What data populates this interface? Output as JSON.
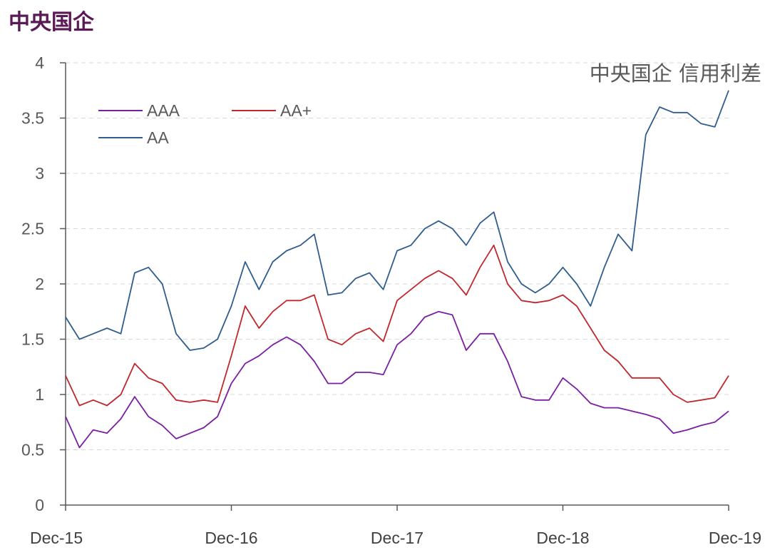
{
  "page": {
    "title": "中央国企"
  },
  "chart_data": {
    "type": "line",
    "title": "中央国企 信用利差",
    "xlabel": "",
    "ylabel": "",
    "ylim": [
      0,
      4
    ],
    "yticks": [
      "0",
      "0.5",
      "1",
      "1.5",
      "2",
      "2.5",
      "3",
      "3.5",
      "4"
    ],
    "xlim": [
      "2015-12",
      "2019-12"
    ],
    "xtick_labels": [
      "Dec-15",
      "Dec-16",
      "Dec-17",
      "Dec-18",
      "Dec-19"
    ],
    "grid": "horizontal dashed",
    "legend_position": "top-left",
    "series": [
      {
        "name": "AAA",
        "color": "#7b1fa2",
        "points": [
          [
            "2015-12",
            0.8
          ],
          [
            "2016-01",
            0.52
          ],
          [
            "2016-02",
            0.68
          ],
          [
            "2016-03",
            0.65
          ],
          [
            "2016-04",
            0.78
          ],
          [
            "2016-05",
            0.98
          ],
          [
            "2016-06",
            0.8
          ],
          [
            "2016-07",
            0.72
          ],
          [
            "2016-08",
            0.6
          ],
          [
            "2016-09",
            0.65
          ],
          [
            "2016-10",
            0.7
          ],
          [
            "2016-11",
            0.8
          ],
          [
            "2016-12",
            1.1
          ],
          [
            "2017-01",
            1.28
          ],
          [
            "2017-02",
            1.35
          ],
          [
            "2017-03",
            1.45
          ],
          [
            "2017-04",
            1.52
          ],
          [
            "2017-05",
            1.45
          ],
          [
            "2017-06",
            1.3
          ],
          [
            "2017-07",
            1.1
          ],
          [
            "2017-08",
            1.1
          ],
          [
            "2017-09",
            1.2
          ],
          [
            "2017-10",
            1.2
          ],
          [
            "2017-11",
            1.18
          ],
          [
            "2017-12",
            1.45
          ],
          [
            "2018-01",
            1.55
          ],
          [
            "2018-02",
            1.7
          ],
          [
            "2018-03",
            1.75
          ],
          [
            "2018-04",
            1.72
          ],
          [
            "2018-05",
            1.4
          ],
          [
            "2018-06",
            1.55
          ],
          [
            "2018-07",
            1.55
          ],
          [
            "2018-08",
            1.3
          ],
          [
            "2018-09",
            0.98
          ],
          [
            "2018-10",
            0.95
          ],
          [
            "2018-11",
            0.95
          ],
          [
            "2018-12",
            1.15
          ],
          [
            "2019-01",
            1.05
          ],
          [
            "2019-02",
            0.92
          ],
          [
            "2019-03",
            0.88
          ],
          [
            "2019-04",
            0.88
          ],
          [
            "2019-05",
            0.85
          ],
          [
            "2019-06",
            0.82
          ],
          [
            "2019-07",
            0.78
          ],
          [
            "2019-08",
            0.65
          ],
          [
            "2019-09",
            0.68
          ],
          [
            "2019-10",
            0.72
          ],
          [
            "2019-11",
            0.75
          ],
          [
            "2019-12",
            0.85
          ]
        ]
      },
      {
        "name": "AA+",
        "color": "#c0282d",
        "points": [
          [
            "2015-12",
            1.17
          ],
          [
            "2016-01",
            0.9
          ],
          [
            "2016-02",
            0.95
          ],
          [
            "2016-03",
            0.9
          ],
          [
            "2016-04",
            1.0
          ],
          [
            "2016-05",
            1.28
          ],
          [
            "2016-06",
            1.15
          ],
          [
            "2016-07",
            1.1
          ],
          [
            "2016-08",
            0.95
          ],
          [
            "2016-09",
            0.93
          ],
          [
            "2016-10",
            0.95
          ],
          [
            "2016-11",
            0.93
          ],
          [
            "2016-12",
            1.35
          ],
          [
            "2017-01",
            1.8
          ],
          [
            "2017-02",
            1.6
          ],
          [
            "2017-03",
            1.75
          ],
          [
            "2017-04",
            1.85
          ],
          [
            "2017-05",
            1.85
          ],
          [
            "2017-06",
            1.9
          ],
          [
            "2017-07",
            1.5
          ],
          [
            "2017-08",
            1.45
          ],
          [
            "2017-09",
            1.55
          ],
          [
            "2017-10",
            1.6
          ],
          [
            "2017-11",
            1.48
          ],
          [
            "2017-12",
            1.85
          ],
          [
            "2018-01",
            1.95
          ],
          [
            "2018-02",
            2.05
          ],
          [
            "2018-03",
            2.12
          ],
          [
            "2018-04",
            2.05
          ],
          [
            "2018-05",
            1.9
          ],
          [
            "2018-06",
            2.15
          ],
          [
            "2018-07",
            2.35
          ],
          [
            "2018-08",
            2.0
          ],
          [
            "2018-09",
            1.85
          ],
          [
            "2018-10",
            1.83
          ],
          [
            "2018-11",
            1.85
          ],
          [
            "2018-12",
            1.9
          ],
          [
            "2019-01",
            1.8
          ],
          [
            "2019-02",
            1.6
          ],
          [
            "2019-03",
            1.4
          ],
          [
            "2019-04",
            1.3
          ],
          [
            "2019-05",
            1.15
          ],
          [
            "2019-06",
            1.15
          ],
          [
            "2019-07",
            1.15
          ],
          [
            "2019-08",
            1.0
          ],
          [
            "2019-09",
            0.93
          ],
          [
            "2019-10",
            0.95
          ],
          [
            "2019-11",
            0.97
          ],
          [
            "2019-12",
            1.17
          ]
        ]
      },
      {
        "name": "AA",
        "color": "#2f5d8c",
        "points": [
          [
            "2015-12",
            1.7
          ],
          [
            "2016-01",
            1.5
          ],
          [
            "2016-02",
            1.55
          ],
          [
            "2016-03",
            1.6
          ],
          [
            "2016-04",
            1.55
          ],
          [
            "2016-05",
            2.1
          ],
          [
            "2016-06",
            2.15
          ],
          [
            "2016-07",
            2.0
          ],
          [
            "2016-08",
            1.55
          ],
          [
            "2016-09",
            1.4
          ],
          [
            "2016-10",
            1.42
          ],
          [
            "2016-11",
            1.5
          ],
          [
            "2016-12",
            1.8
          ],
          [
            "2017-01",
            2.2
          ],
          [
            "2017-02",
            1.95
          ],
          [
            "2017-03",
            2.2
          ],
          [
            "2017-04",
            2.3
          ],
          [
            "2017-05",
            2.35
          ],
          [
            "2017-06",
            2.45
          ],
          [
            "2017-07",
            1.9
          ],
          [
            "2017-08",
            1.92
          ],
          [
            "2017-09",
            2.05
          ],
          [
            "2017-10",
            2.1
          ],
          [
            "2017-11",
            1.95
          ],
          [
            "2017-12",
            2.3
          ],
          [
            "2018-01",
            2.35
          ],
          [
            "2018-02",
            2.5
          ],
          [
            "2018-03",
            2.57
          ],
          [
            "2018-04",
            2.5
          ],
          [
            "2018-05",
            2.35
          ],
          [
            "2018-06",
            2.55
          ],
          [
            "2018-07",
            2.65
          ],
          [
            "2018-08",
            2.2
          ],
          [
            "2018-09",
            2.0
          ],
          [
            "2018-10",
            1.92
          ],
          [
            "2018-11",
            2.0
          ],
          [
            "2018-12",
            2.15
          ],
          [
            "2019-01",
            2.0
          ],
          [
            "2019-02",
            1.8
          ],
          [
            "2019-03",
            2.15
          ],
          [
            "2019-04",
            2.45
          ],
          [
            "2019-05",
            2.3
          ],
          [
            "2019-06",
            3.35
          ],
          [
            "2019-07",
            3.6
          ],
          [
            "2019-08",
            3.55
          ],
          [
            "2019-09",
            3.55
          ],
          [
            "2019-10",
            3.45
          ],
          [
            "2019-11",
            3.42
          ],
          [
            "2019-12",
            3.75
          ]
        ]
      }
    ]
  }
}
